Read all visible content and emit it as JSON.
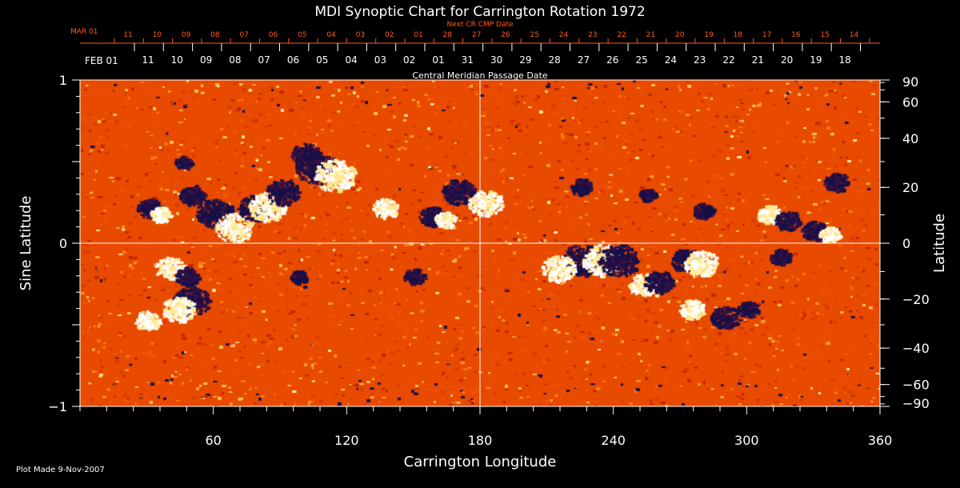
{
  "chart_data": {
    "type": "heatmap",
    "title": "MDI Synoptic Chart for Carrington Rotation 1972",
    "xlabel": "Carrington Longitude",
    "ylabel_left": "Sine Latitude",
    "ylabel_right": "Latitude",
    "xlim": [
      0,
      360
    ],
    "ylim": [
      -1,
      1
    ],
    "x_ticks": [
      60,
      120,
      180,
      240,
      300,
      360
    ],
    "y_ticks_left": [
      {
        "value": 1,
        "label": "1"
      },
      {
        "value": 0,
        "label": "0"
      },
      {
        "value": -1,
        "label": "−1"
      }
    ],
    "y_ticks_right": [
      {
        "lat": 90,
        "label": "90"
      },
      {
        "lat": 60,
        "label": "60"
      },
      {
        "lat": 40,
        "label": "40"
      },
      {
        "lat": 20,
        "label": "20"
      },
      {
        "lat": 0,
        "label": "0"
      },
      {
        "lat": -20,
        "label": "−20"
      },
      {
        "lat": -40,
        "label": "−40"
      },
      {
        "lat": -60,
        "label": "−60"
      },
      {
        "lat": -90,
        "label": "−90"
      }
    ],
    "cmp_axis": {
      "label": "Central Meridian Passage Date",
      "start_label": "FEB 01",
      "labels": [
        "11",
        "10",
        "09",
        "08",
        "07",
        "06",
        "05",
        "04",
        "03",
        "02",
        "01",
        "31",
        "30",
        "29",
        "28",
        "27",
        "26",
        "25",
        "24",
        "23",
        "22",
        "21",
        "20",
        "19",
        "18"
      ]
    },
    "next_cr_axis": {
      "label": "Next CR CMP Date",
      "start_label": "MAR 01",
      "labels": [
        "11",
        "10",
        "09",
        "08",
        "07",
        "06",
        "05",
        "04",
        "03",
        "02",
        "01",
        "28",
        "27",
        "26",
        "25",
        "24",
        "23",
        "22",
        "21",
        "20",
        "19",
        "18",
        "17",
        "16",
        "15",
        "14"
      ]
    },
    "grid": {
      "longitude": [
        180
      ],
      "sine_latitude": [
        0
      ]
    },
    "colors": {
      "background": "#000000",
      "axes": "#ffffff",
      "next_cr": "#ff5a1e",
      "positive": "#ffffff",
      "negative": "#101040",
      "quiet": "#ff5a00"
    },
    "active_regions": [
      {
        "lon": 106,
        "slat": 0.47,
        "polarity": "negative",
        "strength": 1.0
      },
      {
        "lon": 114,
        "slat": 0.42,
        "polarity": "positive",
        "strength": 1.0
      },
      {
        "lon": 101,
        "slat": 0.55,
        "polarity": "negative",
        "strength": 0.7
      },
      {
        "lon": 60,
        "slat": 0.19,
        "polarity": "negative",
        "strength": 0.9
      },
      {
        "lon": 69,
        "slat": 0.1,
        "polarity": "positive",
        "strength": 0.9
      },
      {
        "lon": 78,
        "slat": 0.22,
        "polarity": "negative",
        "strength": 0.8
      },
      {
        "lon": 84,
        "slat": 0.23,
        "polarity": "positive",
        "strength": 0.9
      },
      {
        "lon": 91,
        "slat": 0.32,
        "polarity": "negative",
        "strength": 0.8
      },
      {
        "lon": 50,
        "slat": 0.3,
        "polarity": "negative",
        "strength": 0.6
      },
      {
        "lon": 31,
        "slat": 0.22,
        "polarity": "negative",
        "strength": 0.6
      },
      {
        "lon": 36,
        "slat": 0.18,
        "polarity": "positive",
        "strength": 0.5
      },
      {
        "lon": 170,
        "slat": 0.32,
        "polarity": "negative",
        "strength": 0.8
      },
      {
        "lon": 182,
        "slat": 0.25,
        "polarity": "positive",
        "strength": 0.8
      },
      {
        "lon": 158,
        "slat": 0.17,
        "polarity": "negative",
        "strength": 0.6
      },
      {
        "lon": 164,
        "slat": 0.15,
        "polarity": "positive",
        "strength": 0.5
      },
      {
        "lon": 137,
        "slat": 0.22,
        "polarity": "positive",
        "strength": 0.6
      },
      {
        "lon": 46,
        "slat": 0.5,
        "polarity": "negative",
        "strength": 0.4
      },
      {
        "lon": 225,
        "slat": -0.1,
        "polarity": "negative",
        "strength": 1.0
      },
      {
        "lon": 235,
        "slat": -0.1,
        "polarity": "positive",
        "strength": 1.0
      },
      {
        "lon": 242,
        "slat": -0.1,
        "polarity": "negative",
        "strength": 1.0
      },
      {
        "lon": 215,
        "slat": -0.15,
        "polarity": "positive",
        "strength": 0.8
      },
      {
        "lon": 253,
        "slat": -0.25,
        "polarity": "positive",
        "strength": 0.7
      },
      {
        "lon": 260,
        "slat": -0.23,
        "polarity": "negative",
        "strength": 0.7
      },
      {
        "lon": 272,
        "slat": -0.1,
        "polarity": "negative",
        "strength": 0.7
      },
      {
        "lon": 279,
        "slat": -0.12,
        "polarity": "positive",
        "strength": 0.8
      },
      {
        "lon": 275,
        "slat": -0.4,
        "polarity": "positive",
        "strength": 0.6
      },
      {
        "lon": 290,
        "slat": -0.45,
        "polarity": "negative",
        "strength": 0.7
      },
      {
        "lon": 300,
        "slat": -0.4,
        "polarity": "negative",
        "strength": 0.5
      },
      {
        "lon": 310,
        "slat": 0.18,
        "polarity": "positive",
        "strength": 0.6
      },
      {
        "lon": 318,
        "slat": 0.14,
        "polarity": "negative",
        "strength": 0.6
      },
      {
        "lon": 330,
        "slat": 0.08,
        "polarity": "negative",
        "strength": 0.6
      },
      {
        "lon": 337,
        "slat": 0.06,
        "polarity": "positive",
        "strength": 0.5
      },
      {
        "lon": 340,
        "slat": 0.38,
        "polarity": "negative",
        "strength": 0.6
      },
      {
        "lon": 315,
        "slat": -0.08,
        "polarity": "negative",
        "strength": 0.5
      },
      {
        "lon": 50,
        "slat": -0.35,
        "polarity": "negative",
        "strength": 0.9
      },
      {
        "lon": 44,
        "slat": -0.4,
        "polarity": "positive",
        "strength": 0.8
      },
      {
        "lon": 40,
        "slat": -0.15,
        "polarity": "positive",
        "strength": 0.7
      },
      {
        "lon": 48,
        "slat": -0.2,
        "polarity": "negative",
        "strength": 0.6
      },
      {
        "lon": 30,
        "slat": -0.47,
        "polarity": "positive",
        "strength": 0.6
      },
      {
        "lon": 150,
        "slat": -0.2,
        "polarity": "negative",
        "strength": 0.5
      },
      {
        "lon": 98,
        "slat": -0.2,
        "polarity": "negative",
        "strength": 0.4
      },
      {
        "lon": 280,
        "slat": 0.2,
        "polarity": "negative",
        "strength": 0.5
      },
      {
        "lon": 225,
        "slat": 0.35,
        "polarity": "negative",
        "strength": 0.5
      },
      {
        "lon": 255,
        "slat": 0.3,
        "polarity": "negative",
        "strength": 0.4
      }
    ],
    "footer": "Plot Made  9-Nov-2007"
  }
}
